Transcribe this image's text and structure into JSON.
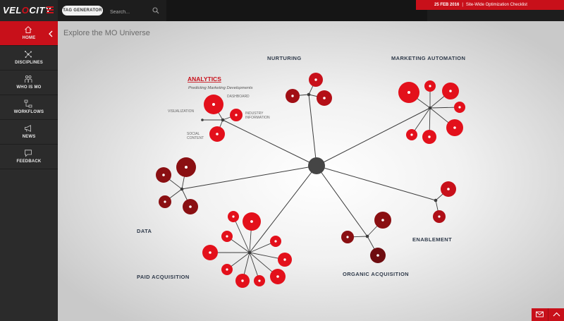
{
  "app": {
    "logo_pre": "VEL",
    "logo_mid": "O",
    "logo_post": "CITY"
  },
  "topbar": {
    "tag_generator_label": "TAG GENERATOR",
    "search_placeholder": "Search...",
    "banner_date": "25 FEB 2016",
    "banner_sep": "|",
    "banner_text": "Site-Wide Optimization Checklist"
  },
  "sidebar": {
    "items": [
      {
        "label": "HOME",
        "icon": "home-icon"
      },
      {
        "label": "DISCIPLINES",
        "icon": "network-icon"
      },
      {
        "label": "WHO IS MO",
        "icon": "people-icon"
      },
      {
        "label": "WORKFLOWS",
        "icon": "workflow-icon"
      },
      {
        "label": "NEWS",
        "icon": "megaphone-icon"
      },
      {
        "label": "FEEDBACK",
        "icon": "chat-icon"
      }
    ]
  },
  "main": {
    "title": "Explore the MO Universe"
  },
  "universe": {
    "clusters": [
      {
        "id": "analytics",
        "label": "ANALYTICS",
        "subtitle": "Predicting Marketing Developments"
      },
      {
        "id": "nurturing",
        "label": "NURTURING"
      },
      {
        "id": "marketing-automation",
        "label": "MARKETING AUTOMATION"
      },
      {
        "id": "data",
        "label": "DATA"
      },
      {
        "id": "paid-acquisition",
        "label": "PAID ACQUISITION"
      },
      {
        "id": "organic-acquisition",
        "label": "ORGANIC ACQUISITION"
      },
      {
        "id": "enablement",
        "label": "ENABLEMENT"
      }
    ],
    "analytics_nodes": {
      "dashboard": "DASHBOARD",
      "visualization": "VISUALIZATION",
      "industry_1": "INDUSTRY",
      "industry_2": "INFORMATION",
      "social_1": "SOCIAL",
      "social_2": "CONTENT"
    }
  },
  "colors": {
    "brand_red": "#c8101a",
    "node_red": "#e3101b",
    "node_dark": "#8a0f12",
    "hub": "#454545",
    "cluster_label": "#2f3a4a"
  },
  "bottom_buttons": [
    {
      "icon": "mail-icon"
    },
    {
      "icon": "chevron-up-icon"
    }
  ]
}
